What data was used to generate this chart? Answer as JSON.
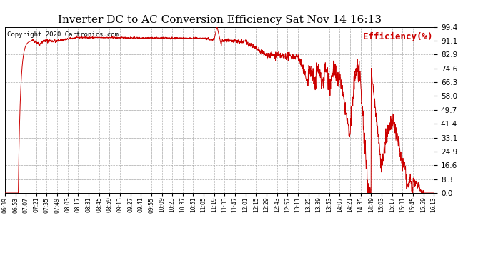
{
  "title": "Inverter DC to AC Conversion Efficiency Sat Nov 14 16:13",
  "copyright": "Copyright 2020 Cartronics.com",
  "legend_label": "Efficiency(%)",
  "line_color": "#cc0000",
  "background_color": "#ffffff",
  "grid_color": "#aaaaaa",
  "yticks": [
    0.0,
    8.3,
    16.6,
    24.9,
    33.1,
    41.4,
    49.7,
    58.0,
    66.3,
    74.6,
    82.9,
    91.1,
    99.4
  ],
  "ymin": 0.0,
  "ymax": 99.4,
  "xtick_labels": [
    "06:39",
    "06:53",
    "07:07",
    "07:21",
    "07:35",
    "07:49",
    "08:03",
    "08:17",
    "08:31",
    "08:45",
    "08:59",
    "09:13",
    "09:27",
    "09:41",
    "09:55",
    "10:09",
    "10:23",
    "10:37",
    "10:51",
    "11:05",
    "11:19",
    "11:33",
    "11:47",
    "12:01",
    "12:15",
    "12:29",
    "12:43",
    "12:57",
    "13:11",
    "13:25",
    "13:39",
    "13:53",
    "14:07",
    "14:21",
    "14:35",
    "14:49",
    "15:03",
    "15:17",
    "15:31",
    "15:45",
    "15:59",
    "16:13"
  ],
  "title_fontsize": 11,
  "copyright_fontsize": 6.5,
  "legend_fontsize": 9,
  "ytick_fontsize": 7.5,
  "xtick_fontsize": 5.5
}
